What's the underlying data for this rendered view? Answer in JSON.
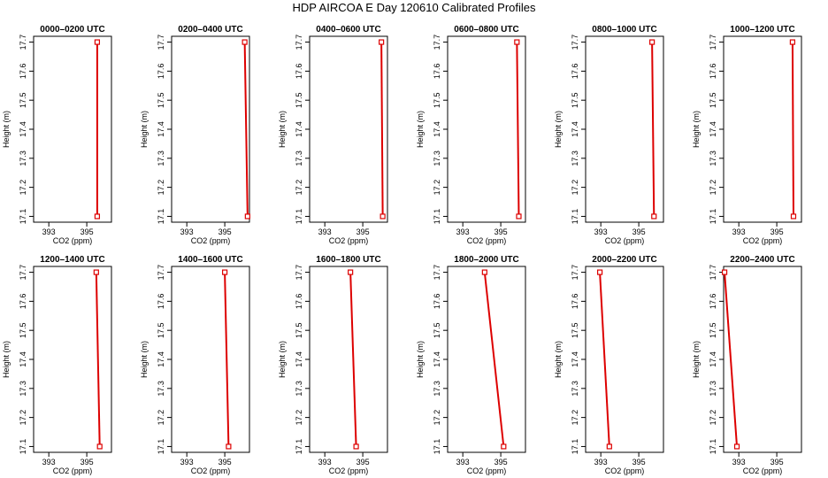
{
  "page": {
    "title": "HDP AIRCOA E  Day 120610  Calibrated Profiles"
  },
  "colors": {
    "line": "#dd0000",
    "point": "#dd0000",
    "axis": "#000000"
  },
  "chart_data": [
    {
      "type": "line",
      "title": "0000–0200 UTC",
      "xlabel": "CO2 (ppm)",
      "ylabel": "Height (m)",
      "xticks": [
        393,
        395
      ],
      "yticks": [
        17.1,
        17.2,
        17.3,
        17.4,
        17.5,
        17.6,
        17.7
      ],
      "xlim": [
        392.2,
        396.3
      ],
      "ylim": [
        17.08,
        17.72
      ],
      "series": [
        {
          "x": [
            395.55,
            395.55
          ],
          "y": [
            17.1,
            17.7
          ]
        }
      ]
    },
    {
      "type": "line",
      "title": "0200–0400 UTC",
      "xlabel": "CO2 (ppm)",
      "ylabel": "Height (m)",
      "xticks": [
        393,
        395
      ],
      "yticks": [
        17.1,
        17.2,
        17.3,
        17.4,
        17.5,
        17.6,
        17.7
      ],
      "xlim": [
        392.2,
        396.3
      ],
      "ylim": [
        17.08,
        17.72
      ],
      "series": [
        {
          "x": [
            396.2,
            396.05
          ],
          "y": [
            17.1,
            17.7
          ]
        }
      ]
    },
    {
      "type": "line",
      "title": "0400–0600 UTC",
      "xlabel": "CO2 (ppm)",
      "ylabel": "Height (m)",
      "xticks": [
        393,
        395
      ],
      "yticks": [
        17.1,
        17.2,
        17.3,
        17.4,
        17.5,
        17.6,
        17.7
      ],
      "xlim": [
        392.2,
        396.3
      ],
      "ylim": [
        17.08,
        17.72
      ],
      "series": [
        {
          "x": [
            396.05,
            395.98
          ],
          "y": [
            17.1,
            17.7
          ]
        }
      ]
    },
    {
      "type": "line",
      "title": "0600–0800 UTC",
      "xlabel": "CO2 (ppm)",
      "ylabel": "Height (m)",
      "xticks": [
        393,
        395
      ],
      "yticks": [
        17.1,
        17.2,
        17.3,
        17.4,
        17.5,
        17.6,
        17.7
      ],
      "xlim": [
        392.2,
        396.3
      ],
      "ylim": [
        17.08,
        17.72
      ],
      "series": [
        {
          "x": [
            395.95,
            395.85
          ],
          "y": [
            17.1,
            17.7
          ]
        }
      ]
    },
    {
      "type": "line",
      "title": "0800–1000 UTC",
      "xlabel": "CO2 (ppm)",
      "ylabel": "Height (m)",
      "xticks": [
        393,
        395
      ],
      "yticks": [
        17.1,
        17.2,
        17.3,
        17.4,
        17.5,
        17.6,
        17.7
      ],
      "xlim": [
        392.2,
        396.3
      ],
      "ylim": [
        17.08,
        17.72
      ],
      "series": [
        {
          "x": [
            395.8,
            395.7
          ],
          "y": [
            17.1,
            17.7
          ]
        }
      ]
    },
    {
      "type": "line",
      "title": "1000–1200 UTC",
      "xlabel": "CO2 (ppm)",
      "ylabel": "Height (m)",
      "xticks": [
        393,
        395
      ],
      "yticks": [
        17.1,
        17.2,
        17.3,
        17.4,
        17.5,
        17.6,
        17.7
      ],
      "xlim": [
        392.2,
        396.3
      ],
      "ylim": [
        17.08,
        17.72
      ],
      "series": [
        {
          "x": [
            395.88,
            395.83
          ],
          "y": [
            17.1,
            17.7
          ]
        }
      ]
    },
    {
      "type": "line",
      "title": "1200–1400 UTC",
      "xlabel": "CO2 (ppm)",
      "ylabel": "Height (m)",
      "xticks": [
        393,
        395
      ],
      "yticks": [
        17.1,
        17.2,
        17.3,
        17.4,
        17.5,
        17.6,
        17.7
      ],
      "xlim": [
        392.2,
        396.3
      ],
      "ylim": [
        17.08,
        17.72
      ],
      "series": [
        {
          "x": [
            395.68,
            395.5
          ],
          "y": [
            17.1,
            17.7
          ]
        }
      ]
    },
    {
      "type": "line",
      "title": "1400–1600 UTC",
      "xlabel": "CO2 (ppm)",
      "ylabel": "Height (m)",
      "xticks": [
        393,
        395
      ],
      "yticks": [
        17.1,
        17.2,
        17.3,
        17.4,
        17.5,
        17.6,
        17.7
      ],
      "xlim": [
        392.2,
        396.3
      ],
      "ylim": [
        17.08,
        17.72
      ],
      "series": [
        {
          "x": [
            395.2,
            395.0
          ],
          "y": [
            17.1,
            17.7
          ]
        }
      ]
    },
    {
      "type": "line",
      "title": "1600–1800 UTC",
      "xlabel": "CO2 (ppm)",
      "ylabel": "Height (m)",
      "xticks": [
        393,
        395
      ],
      "yticks": [
        17.1,
        17.2,
        17.3,
        17.4,
        17.5,
        17.6,
        17.7
      ],
      "xlim": [
        392.2,
        396.3
      ],
      "ylim": [
        17.08,
        17.72
      ],
      "series": [
        {
          "x": [
            394.65,
            394.35
          ],
          "y": [
            17.1,
            17.7
          ]
        }
      ]
    },
    {
      "type": "line",
      "title": "1800–2000 UTC",
      "xlabel": "CO2 (ppm)",
      "ylabel": "Height (m)",
      "xticks": [
        393,
        395
      ],
      "yticks": [
        17.1,
        17.2,
        17.3,
        17.4,
        17.5,
        17.6,
        17.7
      ],
      "xlim": [
        392.2,
        396.3
      ],
      "ylim": [
        17.08,
        17.72
      ],
      "series": [
        {
          "x": [
            395.15,
            394.15
          ],
          "y": [
            17.1,
            17.7
          ]
        }
      ]
    },
    {
      "type": "line",
      "title": "2000–2200 UTC",
      "xlabel": "CO2 (ppm)",
      "ylabel": "Height (m)",
      "xticks": [
        393,
        395
      ],
      "yticks": [
        17.1,
        17.2,
        17.3,
        17.4,
        17.5,
        17.6,
        17.7
      ],
      "xlim": [
        392.2,
        396.3
      ],
      "ylim": [
        17.08,
        17.72
      ],
      "series": [
        {
          "x": [
            393.45,
            392.95
          ],
          "y": [
            17.1,
            17.7
          ]
        }
      ]
    },
    {
      "type": "line",
      "title": "2200–2400 UTC",
      "xlabel": "CO2 (ppm)",
      "ylabel": "Height (m)",
      "xticks": [
        393,
        395
      ],
      "yticks": [
        17.1,
        17.2,
        17.3,
        17.4,
        17.5,
        17.6,
        17.7
      ],
      "xlim": [
        392.2,
        396.3
      ],
      "ylim": [
        17.08,
        17.72
      ],
      "series": [
        {
          "x": [
            392.9,
            392.25
          ],
          "y": [
            17.1,
            17.7
          ]
        }
      ]
    }
  ]
}
